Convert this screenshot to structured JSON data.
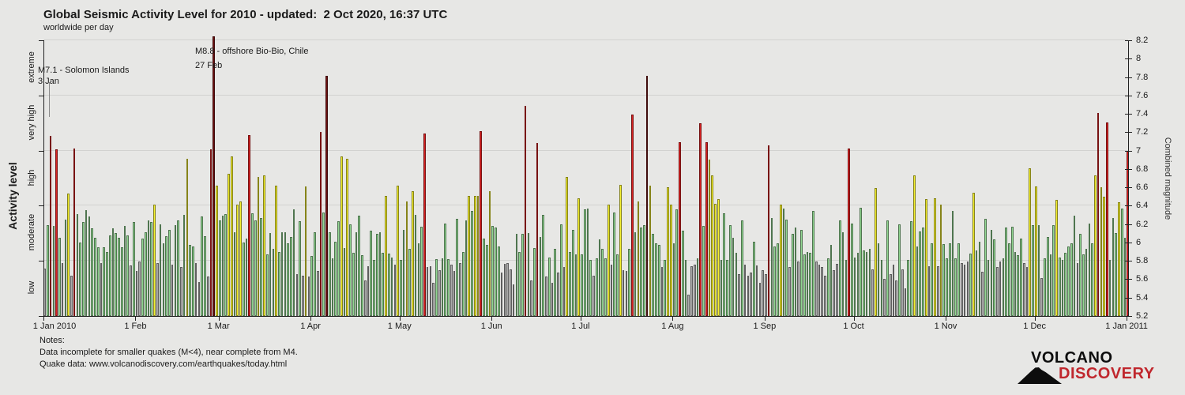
{
  "header": {
    "title": "Global Seismic Activity Level for 2010 - updated:  2 Oct 2020, 16:37 UTC",
    "subtitle": "worldwide per day"
  },
  "y_left": {
    "label": "Activity level",
    "categories": [
      "low",
      "moderate",
      "high",
      "very high",
      "extreme"
    ]
  },
  "y_right": {
    "label": "Combined magnitude"
  },
  "annotations": {
    "solomon": {
      "line1": "M7.1 - Solomon Islands",
      "line2": "3 Jan"
    },
    "chile": {
      "line1": "M8.8 - offshore Bio-Bio, Chile",
      "line2": "27 Feb"
    }
  },
  "notes": {
    "line1": "Notes:",
    "line2": "Data incomplete for smaller quakes (M<4), near complete from M4.",
    "line3": "Quake data: www.volcanodiscovery.com/earthquakes/today.html"
  },
  "logo": {
    "line1": "VOLCANO",
    "line2": "DISCOVERY"
  },
  "colors": {
    "background": "#e7e7e5",
    "gridline": "#d2d2d0",
    "low": "#ababab",
    "moderate": "#90d690",
    "high": "#f5f02e",
    "very_high": "#da2222",
    "extreme": "#731414",
    "logo_red": "#c0272d"
  },
  "chart_data": {
    "type": "bar",
    "title": "Global Seismic Activity Level for 2010",
    "subtitle": "worldwide per day",
    "ylabel_left": "Activity level",
    "ylabel_right": "Combined magnitude",
    "ylim": [
      5.2,
      8.2
    ],
    "ytick_step": 0.2,
    "grid": true,
    "x_month_labels": [
      "1 Jan 2010",
      "1 Feb",
      "1 Mar",
      "1 Apr",
      "1 May",
      "1 Jun",
      "1 Jul",
      "1 Aug",
      "1 Sep",
      "1 Oct",
      "1 Nov",
      "1 Dec",
      "1 Jan 2011"
    ],
    "days_per_month": [
      31,
      28,
      31,
      30,
      31,
      30,
      31,
      31,
      30,
      31,
      30,
      31
    ],
    "level_thresholds": {
      "low": "<5.8",
      "moderate": "5.8-6.4",
      "high": "6.4-7.0",
      "very_high": "7.0-7.6",
      "extreme": ">7.6"
    },
    "series_name": "Combined magnitude per day (1 Jan 2010 - 1 Jan 2011)",
    "values": [
      5.72,
      6.19,
      7.16,
      6.18,
      7.01,
      6.05,
      5.78,
      6.25,
      6.53,
      5.64,
      7.02,
      6.31,
      6.0,
      6.22,
      6.35,
      6.28,
      6.15,
      6.05,
      5.95,
      5.78,
      5.95,
      5.9,
      6.08,
      6.15,
      6.1,
      6.05,
      5.95,
      6.18,
      6.08,
      5.75,
      6.22,
      5.69,
      5.79,
      6.04,
      6.11,
      6.24,
      6.22,
      6.41,
      5.78,
      6.2,
      5.99,
      6.07,
      6.14,
      5.76,
      6.19,
      6.24,
      5.73,
      6.3,
      6.91,
      5.97,
      5.96,
      5.78,
      5.57,
      6.28,
      6.07,
      5.63,
      7.01,
      8.8,
      6.62,
      6.24,
      6.29,
      6.31,
      6.75,
      6.94,
      6.11,
      6.41,
      6.45,
      6.0,
      6.04,
      7.17,
      6.32,
      6.24,
      6.71,
      6.27,
      6.73,
      5.87,
      6.1,
      5.93,
      6.62,
      5.9,
      6.11,
      6.11,
      5.99,
      6.06,
      6.36,
      5.66,
      6.23,
      5.64,
      6.61,
      5.63,
      5.85,
      6.11,
      5.69,
      7.2,
      6.33,
      7.81,
      6.11,
      5.83,
      6.01,
      6.23,
      6.94,
      5.94,
      6.91,
      6.2,
      5.89,
      6.11,
      6.29,
      5.86,
      5.59,
      5.74,
      6.13,
      5.81,
      6.09,
      6.11,
      5.89,
      6.51,
      5.88,
      5.84,
      5.76,
      6.62,
      5.81,
      6.14,
      6.45,
      5.93,
      6.56,
      6.3,
      5.99,
      6.17,
      7.19,
      5.73,
      5.74,
      5.56,
      5.82,
      5.7,
      5.83,
      6.21,
      5.82,
      5.76,
      5.69,
      6.26,
      5.78,
      5.9,
      6.24,
      6.51,
      6.34,
      6.51,
      6.51,
      7.21,
      6.04,
      5.97,
      6.56,
      6.18,
      6.16,
      5.96,
      5.67,
      5.77,
      5.78,
      5.71,
      5.54,
      6.09,
      5.9,
      6.09,
      7.49,
      6.1,
      5.59,
      5.94,
      7.08,
      6.06,
      6.3,
      5.63,
      5.84,
      5.56,
      5.93,
      5.67,
      6.2,
      5.73,
      6.71,
      5.9,
      6.14,
      5.87,
      6.48,
      5.87,
      6.36,
      6.37,
      5.81,
      5.64,
      5.83,
      6.03,
      5.93,
      5.83,
      6.41,
      5.76,
      6.33,
      5.87,
      6.63,
      5.7,
      5.69,
      5.93,
      7.39,
      6.11,
      6.45,
      6.16,
      6.19,
      7.81,
      6.62,
      6.09,
      5.99,
      5.97,
      5.73,
      5.81,
      6.6,
      6.41,
      5.99,
      6.36,
      7.09,
      6.13,
      5.81,
      5.43,
      5.74,
      5.76,
      5.83,
      7.3,
      6.18,
      7.09,
      6.9,
      6.73,
      6.42,
      6.47,
      5.81,
      6.32,
      5.81,
      6.19,
      6.05,
      5.89,
      5.66,
      6.24,
      5.76,
      5.64,
      5.67,
      6.01,
      5.75,
      5.56,
      5.7,
      5.66,
      7.06,
      6.27,
      5.96,
      5.99,
      6.41,
      6.37,
      6.25,
      5.73,
      6.09,
      6.16,
      5.79,
      6.14,
      5.87,
      5.9,
      5.89,
      6.34,
      5.79,
      5.76,
      5.73,
      5.64,
      5.83,
      5.97,
      5.7,
      5.77,
      6.24,
      6.11,
      5.81,
      7.02,
      6.21,
      5.84,
      5.89,
      6.38,
      5.91,
      5.9,
      5.93,
      5.71,
      6.59,
      5.99,
      5.81,
      5.6,
      6.24,
      5.66,
      5.76,
      5.59,
      6.2,
      5.71,
      5.5,
      5.81,
      6.23,
      6.73,
      5.96,
      6.12,
      6.16,
      6.47,
      5.74,
      5.99,
      6.48,
      5.74,
      6.41,
      5.98,
      5.83,
      5.99,
      6.34,
      5.83,
      5.99,
      5.78,
      5.76,
      5.79,
      5.88,
      6.54,
      5.91,
      6.01,
      5.68,
      6.26,
      5.81,
      6.14,
      6.03,
      5.73,
      5.79,
      5.83,
      6.16,
      5.99,
      6.17,
      5.9,
      5.86,
      6.04,
      5.78,
      5.73,
      6.81,
      6.19,
      6.61,
      6.19,
      5.61,
      5.83,
      6.06,
      5.87,
      6.19,
      6.46,
      5.84,
      5.81,
      5.89,
      5.96,
      5.99,
      6.29,
      5.78,
      6.09,
      5.87,
      5.93,
      6.21,
      5.99,
      6.73,
      7.41,
      6.6,
      6.5,
      7.31,
      5.81,
      6.27,
      6.1,
      6.44,
      6.37,
      6.05,
      7.0
    ]
  }
}
